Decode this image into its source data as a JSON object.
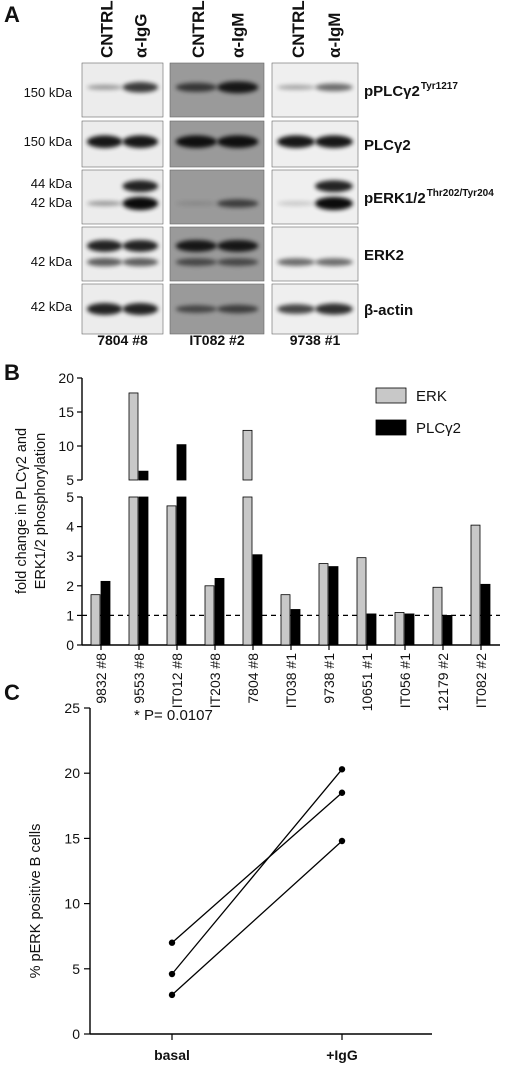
{
  "panel_a": {
    "letter": "A",
    "blocks": [
      {
        "lane_labels": [
          "CNTRL",
          "α-IgG"
        ],
        "sample": "7804 #8",
        "bg": "#ececec",
        "dark": false
      },
      {
        "lane_labels": [
          "CNTRL",
          "α-IgM"
        ],
        "sample": "IT082 #2",
        "bg": "#9a9a9a",
        "dark": true
      },
      {
        "lane_labels": [
          "CNTRL",
          "α-IgM"
        ],
        "sample": "9738 #1",
        "bg": "#efefef",
        "dark": false
      }
    ],
    "rows": [
      {
        "mw": [
          "150 kDa"
        ],
        "protein": "pPLCγ2",
        "superscript": "Tyr1217"
      },
      {
        "mw": [
          "150 kDa"
        ],
        "protein": "PLCγ2",
        "superscript": ""
      },
      {
        "mw": [
          "44 kDa",
          "42 kDa"
        ],
        "protein": "pERK1/2",
        "superscript": "Thr202/Tyr204"
      },
      {
        "mw": [
          "42 kDa"
        ],
        "protein": "ERK2",
        "superscript": ""
      },
      {
        "mw": [
          "42 kDa"
        ],
        "protein": "β-actin",
        "superscript": ""
      }
    ]
  },
  "chart_data": [
    {
      "panel": "B",
      "type": "bar",
      "ylabel_lines": [
        "fold change in PLCγ2 and",
        "ERK1/2 phosphorylation"
      ],
      "categories": [
        "9832 #8",
        "9553 #8",
        "IT012 #8",
        "IT203 #8",
        "7804 #8",
        "IT038 #1",
        "9738 #1",
        "10651 #1",
        "IT056 #1",
        "12179 #2",
        "IT082 #2"
      ],
      "series": [
        {
          "name": "ERK",
          "color": "#c8c8c8",
          "values": [
            1.7,
            17.8,
            4.7,
            2.0,
            12.3,
            1.7,
            2.75,
            2.95,
            1.1,
            1.95,
            4.05
          ]
        },
        {
          "name": "PLCγ2",
          "color": "#000000",
          "values": [
            2.15,
            6.3,
            10.2,
            2.25,
            3.05,
            1.2,
            2.65,
            1.05,
            1.05,
            1.0,
            2.05
          ]
        }
      ],
      "axis_break": {
        "lower_range": [
          0,
          5
        ],
        "upper_range": [
          5,
          20
        ]
      },
      "lower_ticks": [
        0,
        1,
        2,
        3,
        4,
        5
      ],
      "upper_ticks": [
        5,
        10,
        15,
        20
      ],
      "reference_line": 1,
      "legend_position": "top-right"
    },
    {
      "panel": "C",
      "type": "line",
      "ylabel": "% pERK positive B cells",
      "categories": [
        "basal",
        "+IgG"
      ],
      "series": [
        {
          "values": [
            7.0,
            18.5
          ]
        },
        {
          "values": [
            4.6,
            20.3
          ]
        },
        {
          "values": [
            3.0,
            14.8
          ]
        }
      ],
      "ylim": [
        0,
        25
      ],
      "yticks": [
        0,
        5,
        10,
        15,
        20,
        25
      ],
      "annotation": "* P= 0.0107"
    }
  ]
}
